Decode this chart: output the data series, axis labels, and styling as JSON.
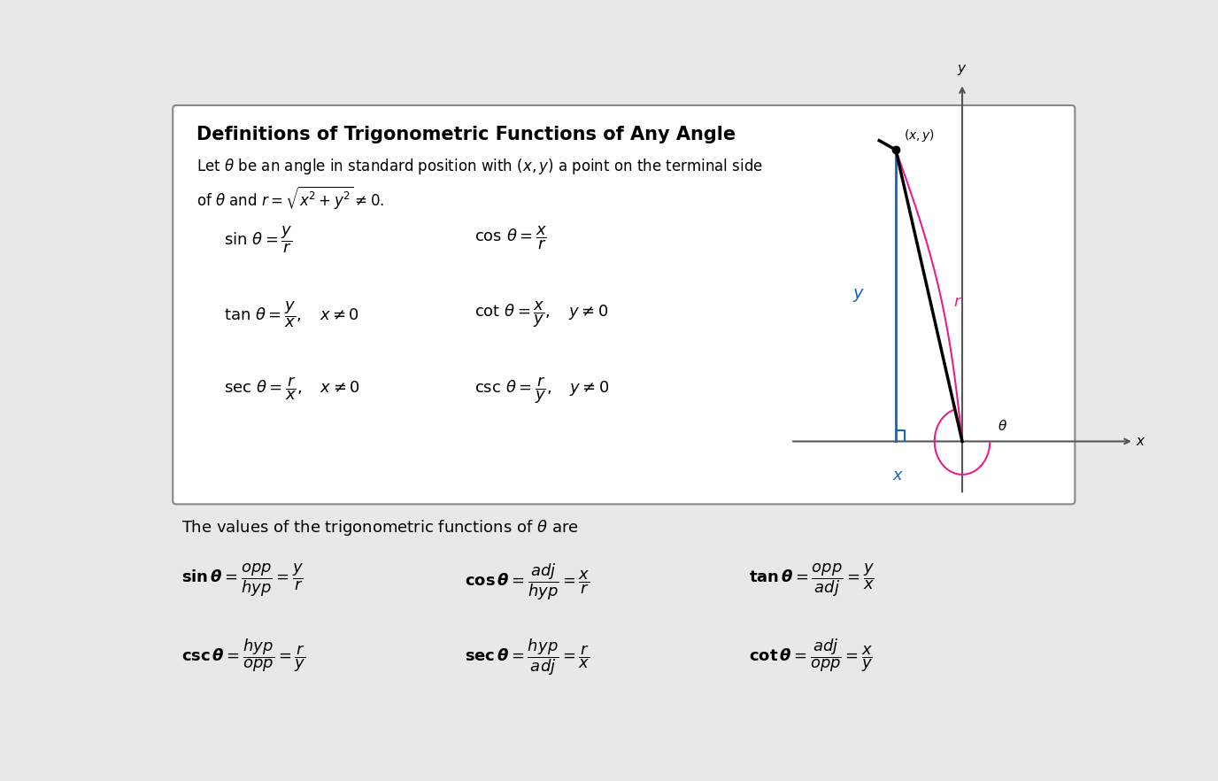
{
  "bg_color": "#e8e8e8",
  "box_bg": "#ffffff",
  "box_border": "#888888",
  "title": "Definitions of Trigonometric Functions of Any Angle",
  "subtitle_line1": "Let $\\theta$ be an angle in standard position with $(x, y)$ a point on the terminal side",
  "subtitle_line2": "of $\\theta$ and $r = \\sqrt{x^2 + y^2} \\neq 0$.",
  "formulas_top": [
    [
      "$\\sin\\,\\theta = \\dfrac{y}{r}$",
      "$\\cos\\,\\theta = \\dfrac{x}{r}$"
    ],
    [
      "$\\tan\\,\\theta = \\dfrac{y}{x},\\quad x \\neq 0$",
      "$\\cot\\,\\theta = \\dfrac{x}{y},\\quad y \\neq 0$"
    ],
    [
      "$\\sec\\,\\theta = \\dfrac{r}{x},\\quad x \\neq 0$",
      "$\\csc\\,\\theta = \\dfrac{r}{y},\\quad y \\neq 0$"
    ]
  ],
  "bottom_text": "The values of the trigonometric functions of $\\theta$ are",
  "formulas_bottom_row1": [
    "$\\mathbf{sin}\\,\\boldsymbol{\\theta} = \\dfrac{\\mathit{opp}}{\\mathit{hyp}} = \\dfrac{y}{r}$",
    "$\\mathbf{cos}\\,\\boldsymbol{\\theta} = \\dfrac{\\mathit{adj}}{\\mathit{hyp}} = \\dfrac{x}{r}$",
    "$\\mathbf{tan}\\,\\boldsymbol{\\theta} = \\dfrac{\\mathit{opp}}{\\mathit{adj}} = \\dfrac{y}{x}$"
  ],
  "formulas_bottom_row2": [
    "$\\mathbf{csc}\\,\\boldsymbol{\\theta} = \\dfrac{\\mathit{hyp}}{\\mathit{opp}} = \\dfrac{r}{y}$",
    "$\\mathbf{sec}\\,\\boldsymbol{\\theta} = \\dfrac{\\mathit{hyp}}{\\mathit{adj}} = \\dfrac{r}{x}$",
    "$\\mathbf{cot}\\,\\boldsymbol{\\theta} = \\dfrac{\\mathit{adj}}{\\mathit{opp}} = \\dfrac{x}{y}$"
  ],
  "blue_color": "#1565C0",
  "pink_color": "#E91E8C",
  "black_color": "#000000",
  "gray_color": "#555555"
}
